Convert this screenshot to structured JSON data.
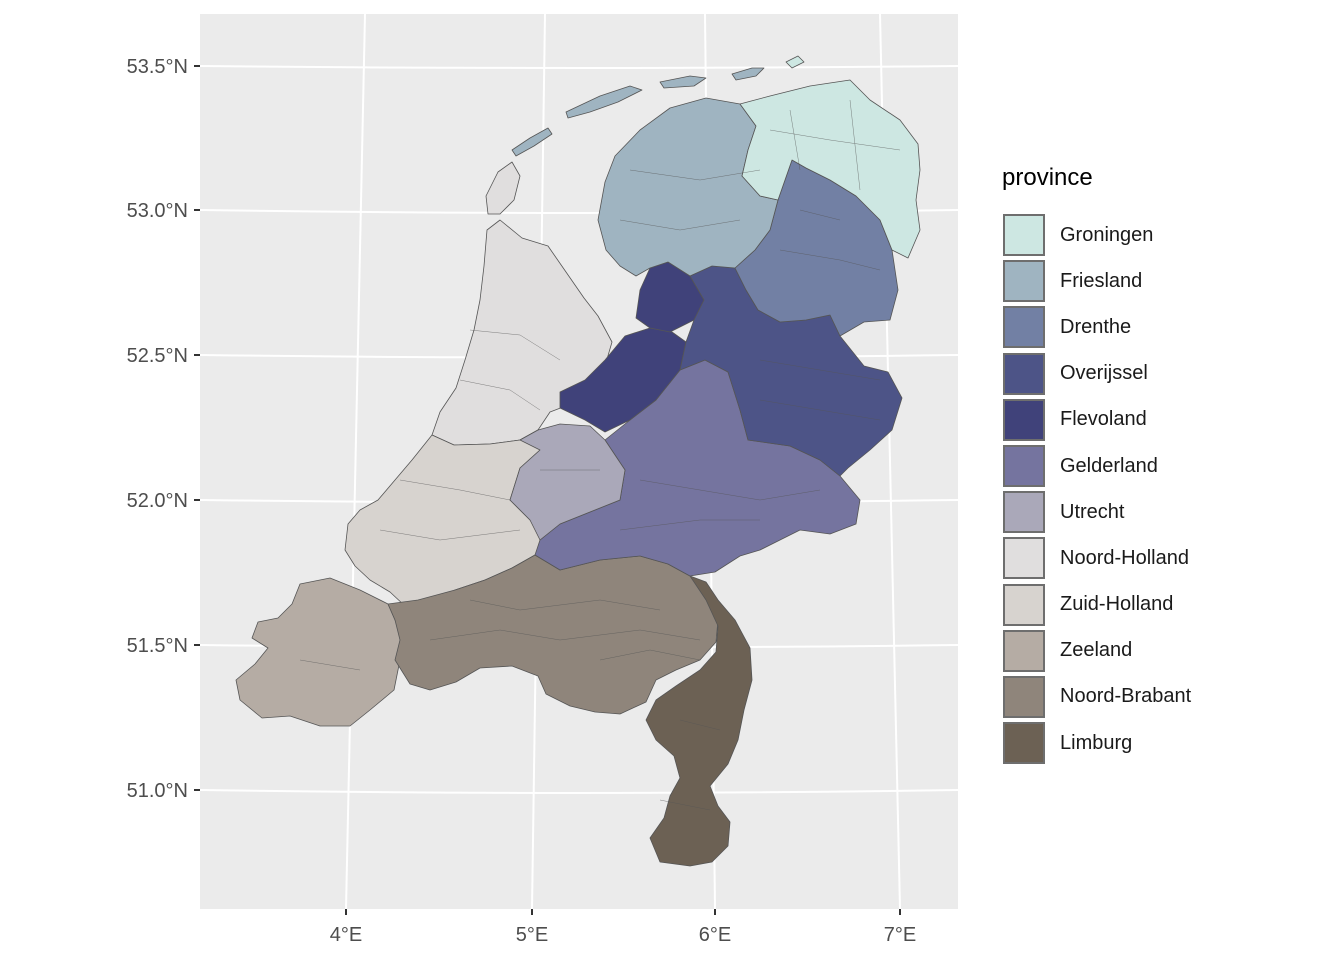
{
  "map": {
    "y_ticks": [
      "53.5°N",
      "53.0°N",
      "52.5°N",
      "52.0°N",
      "51.5°N",
      "51.0°N"
    ],
    "x_ticks": [
      "4°E",
      "5°E",
      "6°E",
      "7°E"
    ]
  },
  "legend": {
    "title": "province",
    "items": [
      {
        "label": "Groningen",
        "color": "#cde7e2"
      },
      {
        "label": "Friesland",
        "color": "#9fb4c1"
      },
      {
        "label": "Drenthe",
        "color": "#7280a4"
      },
      {
        "label": "Overijssel",
        "color": "#4d5487"
      },
      {
        "label": "Flevoland",
        "color": "#40427a"
      },
      {
        "label": "Gelderland",
        "color": "#75749f"
      },
      {
        "label": "Utrecht",
        "color": "#aaa8b9"
      },
      {
        "label": "Noord-Holland",
        "color": "#e0dede"
      },
      {
        "label": "Zuid-Holland",
        "color": "#d7d3cf"
      },
      {
        "label": "Zeeland",
        "color": "#b5aca4"
      },
      {
        "label": "Noord-Brabant",
        "color": "#8f857b"
      },
      {
        "label": "Limburg",
        "color": "#6c6154"
      }
    ]
  }
}
